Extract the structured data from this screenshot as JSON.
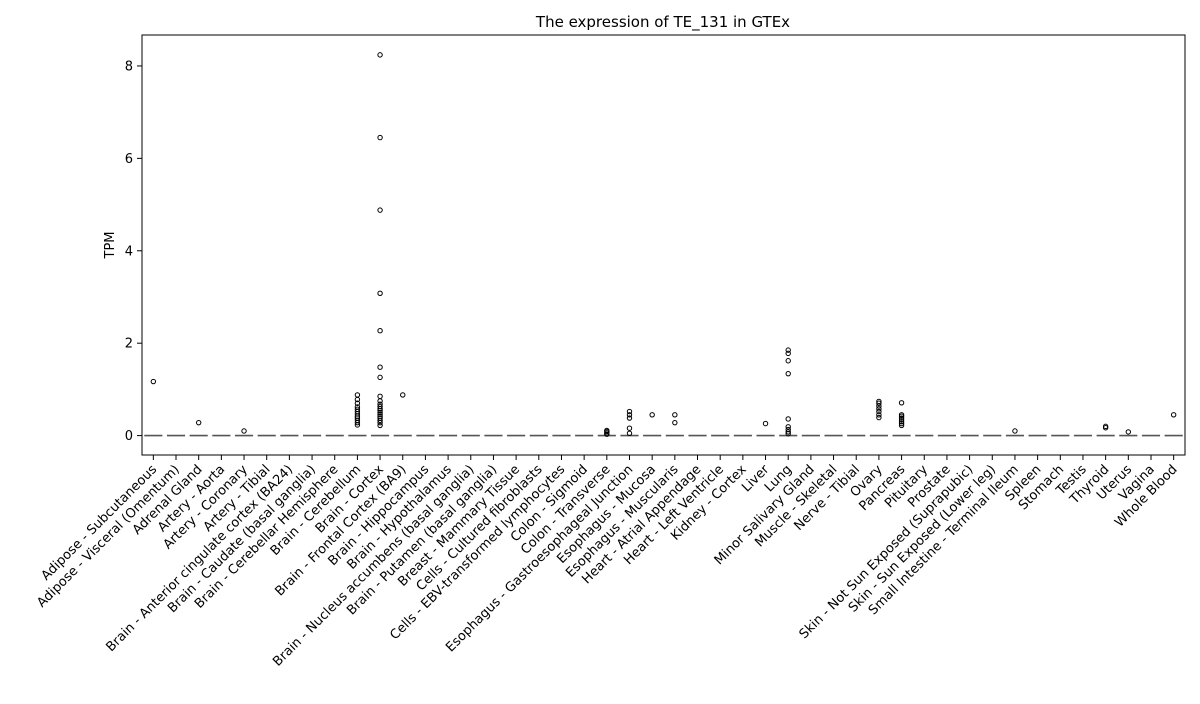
{
  "chart_data": {
    "type": "box",
    "title": "The expression of TE_131 in GTEx",
    "xlabel": "",
    "ylabel": "TPM",
    "ylim": [
      -0.42,
      8.67
    ],
    "yticks": [
      0,
      2,
      4,
      6,
      8
    ],
    "grid": false,
    "legend": "none",
    "categories": [
      "Adipose - Subcutaneous",
      "Adipose - Visceral (Omentum)",
      "Adrenal Gland",
      "Artery - Aorta",
      "Artery - Coronary",
      "Artery - Tibial",
      "Brain - Anterior cingulate cortex (BA24)",
      "Brain - Caudate (basal ganglia)",
      "Brain - Cerebellar Hemisphere",
      "Brain - Cerebellum",
      "Brain - Cortex",
      "Brain - Frontal Cortex (BA9)",
      "Brain - Hippocampus",
      "Brain - Hypothalamus",
      "Brain - Nucleus accumbens (basal ganglia)",
      "Brain - Putamen (basal ganglia)",
      "Breast - Mammary Tissue",
      "Cells - Cultured fibroblasts",
      "Cells - EBV-transformed lymphocytes",
      "Colon - Sigmoid",
      "Colon - Transverse",
      "Esophagus - Gastroesophageal Junction",
      "Esophagus - Mucosa",
      "Esophagus - Muscularis",
      "Heart - Atrial Appendage",
      "Heart - Left Ventricle",
      "Kidney - Cortex",
      "Liver",
      "Lung",
      "Minor Salivary Gland",
      "Muscle - Skeletal",
      "Nerve - Tibial",
      "Ovary",
      "Pancreas",
      "Pituitary",
      "Prostate",
      "Skin - Not Sun Exposed (Suprapubic)",
      "Skin - Sun Exposed (Lower leg)",
      "Small Intestine - Terminal Ileum",
      "Spleen",
      "Stomach",
      "Testis",
      "Thyroid",
      "Uterus",
      "Vagina",
      "Whole Blood"
    ],
    "medians": [
      0,
      0,
      0,
      0,
      0,
      0,
      0,
      0,
      0,
      0,
      0,
      0,
      0,
      0,
      0,
      0,
      0,
      0,
      0,
      0,
      0,
      0,
      0,
      0,
      0,
      0,
      0,
      0,
      0,
      0,
      0,
      0,
      0,
      0,
      0,
      0,
      0,
      0,
      0,
      0,
      0,
      0,
      0,
      0,
      0,
      0
    ],
    "outliers": [
      [
        1.17
      ],
      [],
      [
        0.28
      ],
      [],
      [
        0.1
      ],
      [],
      [],
      [],
      [],
      [
        0.23,
        0.28,
        0.33,
        0.38,
        0.42,
        0.47,
        0.52,
        0.57,
        0.62,
        0.7,
        0.78,
        0.88
      ],
      [
        0.22,
        0.28,
        0.33,
        0.38,
        0.42,
        0.46,
        0.5,
        0.54,
        0.58,
        0.63,
        0.68,
        0.75,
        0.85,
        1.26,
        1.48,
        2.27,
        3.08,
        4.88,
        6.45,
        8.24
      ],
      [
        0.88
      ],
      [],
      [],
      [],
      [],
      [],
      [],
      [],
      [],
      [
        0.03,
        0.06,
        0.09,
        0.11
      ],
      [
        0.05,
        0.16,
        0.38,
        0.45,
        0.52
      ],
      [
        0.45
      ],
      [
        0.28,
        0.45
      ],
      [],
      [],
      [],
      [
        0.26
      ],
      [
        0.04,
        0.08,
        0.13,
        0.19,
        0.36,
        1.34,
        1.62,
        1.78,
        1.85
      ],
      [],
      [],
      [],
      [
        0.39,
        0.45,
        0.52,
        0.58,
        0.64,
        0.7,
        0.74
      ],
      [
        0.22,
        0.26,
        0.3,
        0.34,
        0.38,
        0.42,
        0.45,
        0.71
      ],
      [],
      [],
      [],
      [],
      [
        0.1
      ],
      [],
      [],
      [],
      [
        0.17,
        0.2
      ],
      [
        0.08
      ],
      [],
      [
        0.45
      ],
      []
    ]
  }
}
